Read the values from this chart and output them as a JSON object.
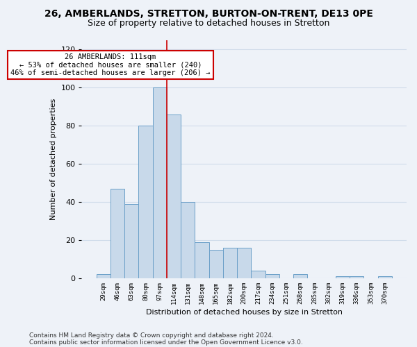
{
  "title": "26, AMBERLANDS, STRETTON, BURTON-ON-TRENT, DE13 0PE",
  "subtitle": "Size of property relative to detached houses in Stretton",
  "xlabel": "Distribution of detached houses by size in Stretton",
  "ylabel": "Number of detached properties",
  "categories": [
    "29sqm",
    "46sqm",
    "63sqm",
    "80sqm",
    "97sqm",
    "114sqm",
    "131sqm",
    "148sqm",
    "165sqm",
    "182sqm",
    "200sqm",
    "217sqm",
    "234sqm",
    "251sqm",
    "268sqm",
    "285sqm",
    "302sqm",
    "319sqm",
    "336sqm",
    "353sqm",
    "370sqm"
  ],
  "bar_heights": [
    2,
    47,
    39,
    80,
    100,
    86,
    40,
    19,
    15,
    16,
    16,
    4,
    2,
    0,
    2,
    0,
    0,
    1,
    1,
    0,
    1
  ],
  "bar_color": "#c8d9ea",
  "bar_edge_color": "#6a9fc8",
  "vline_x_index": 4.5,
  "vline_color": "#cc0000",
  "annotation_text": "26 AMBERLANDS: 111sqm\n← 53% of detached houses are smaller (240)\n46% of semi-detached houses are larger (206) →",
  "annotation_box_color": "#ffffff",
  "annotation_box_edge": "#cc0000",
  "ylim": [
    0,
    125
  ],
  "yticks": [
    0,
    20,
    40,
    60,
    80,
    100,
    120
  ],
  "grid_color": "#d0dcea",
  "footer_line1": "Contains HM Land Registry data © Crown copyright and database right 2024.",
  "footer_line2": "Contains public sector information licensed under the Open Government Licence v3.0.",
  "bg_color": "#eef2f8",
  "title_fontsize": 10,
  "subtitle_fontsize": 9,
  "xlabel_fontsize": 8,
  "ylabel_fontsize": 8
}
